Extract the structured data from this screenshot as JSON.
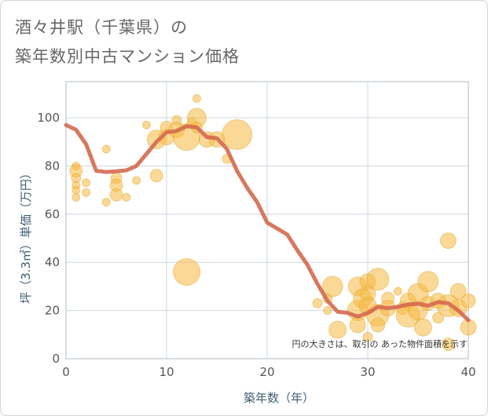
{
  "title": {
    "line1": "酒々井駅（千葉県）の",
    "line2": "築年数別中古マンション価格"
  },
  "colors": {
    "bubble_fill": "#f5b942",
    "bubble_stroke": "#e8a52e",
    "trend_line": "#d4694f",
    "grid": "#cfd8e0",
    "plot_border": "#b0bcc6"
  },
  "chart_data": {
    "type": "scatter",
    "xlabel": "築年数（年）",
    "ylabel": "坪（3.3㎡）単価（万円）",
    "xlim": [
      0,
      40
    ],
    "ylim": [
      0,
      115
    ],
    "x_ticks": [
      0,
      10,
      20,
      30,
      40
    ],
    "y_ticks": [
      0,
      20,
      40,
      60,
      80,
      100
    ],
    "note": "円の大きさは、取引の あった物件面積を示す",
    "points": [
      {
        "x": 1,
        "y": 80,
        "s": 5
      },
      {
        "x": 1,
        "y": 78,
        "s": 8
      },
      {
        "x": 1,
        "y": 75,
        "s": 6
      },
      {
        "x": 1,
        "y": 72,
        "s": 5
      },
      {
        "x": 1,
        "y": 70,
        "s": 5
      },
      {
        "x": 1,
        "y": 67,
        "s": 5
      },
      {
        "x": 2,
        "y": 73,
        "s": 5
      },
      {
        "x": 2,
        "y": 69,
        "s": 5
      },
      {
        "x": 4,
        "y": 87,
        "s": 5
      },
      {
        "x": 4,
        "y": 65,
        "s": 5
      },
      {
        "x": 5,
        "y": 75,
        "s": 7
      },
      {
        "x": 5,
        "y": 72,
        "s": 8
      },
      {
        "x": 5,
        "y": 68,
        "s": 8
      },
      {
        "x": 6,
        "y": 67,
        "s": 5
      },
      {
        "x": 7,
        "y": 74,
        "s": 5
      },
      {
        "x": 8,
        "y": 97,
        "s": 5
      },
      {
        "x": 9,
        "y": 76,
        "s": 8
      },
      {
        "x": 9,
        "y": 91,
        "s": 12
      },
      {
        "x": 10,
        "y": 92,
        "s": 10
      },
      {
        "x": 10,
        "y": 96,
        "s": 8
      },
      {
        "x": 11,
        "y": 95,
        "s": 10
      },
      {
        "x": 11,
        "y": 99,
        "s": 6
      },
      {
        "x": 12,
        "y": 92,
        "s": 17
      },
      {
        "x": 12,
        "y": 36,
        "s": 17
      },
      {
        "x": 12.5,
        "y": 98,
        "s": 6
      },
      {
        "x": 13,
        "y": 100,
        "s": 12
      },
      {
        "x": 13,
        "y": 108,
        "s": 5
      },
      {
        "x": 13,
        "y": 96,
        "s": 7
      },
      {
        "x": 14,
        "y": 91,
        "s": 10
      },
      {
        "x": 15,
        "y": 91,
        "s": 10
      },
      {
        "x": 16,
        "y": 83,
        "s": 6
      },
      {
        "x": 17,
        "y": 93,
        "s": 19
      },
      {
        "x": 25,
        "y": 23,
        "s": 6
      },
      {
        "x": 26,
        "y": 20,
        "s": 5
      },
      {
        "x": 26,
        "y": 25,
        "s": 6
      },
      {
        "x": 26.5,
        "y": 30,
        "s": 13
      },
      {
        "x": 27,
        "y": 12,
        "s": 11
      },
      {
        "x": 29,
        "y": 30,
        "s": 12
      },
      {
        "x": 29,
        "y": 20,
        "s": 13
      },
      {
        "x": 29,
        "y": 14,
        "s": 10
      },
      {
        "x": 29.5,
        "y": 25,
        "s": 12
      },
      {
        "x": 30,
        "y": 32,
        "s": 10
      },
      {
        "x": 30,
        "y": 27,
        "s": 10
      },
      {
        "x": 30,
        "y": 22,
        "s": 11
      },
      {
        "x": 30,
        "y": 9,
        "s": 6
      },
      {
        "x": 31,
        "y": 33,
        "s": 14
      },
      {
        "x": 31,
        "y": 18,
        "s": 14
      },
      {
        "x": 31,
        "y": 14,
        "s": 9
      },
      {
        "x": 32,
        "y": 25,
        "s": 8
      },
      {
        "x": 32,
        "y": 21,
        "s": 10
      },
      {
        "x": 33,
        "y": 28,
        "s": 5
      },
      {
        "x": 33.5,
        "y": 21,
        "s": 8
      },
      {
        "x": 34,
        "y": 18,
        "s": 15
      },
      {
        "x": 34,
        "y": 24,
        "s": 10
      },
      {
        "x": 35,
        "y": 27,
        "s": 13
      },
      {
        "x": 35,
        "y": 20,
        "s": 12
      },
      {
        "x": 35.5,
        "y": 13,
        "s": 11
      },
      {
        "x": 36,
        "y": 32,
        "s": 13
      },
      {
        "x": 36,
        "y": 23,
        "s": 9
      },
      {
        "x": 37,
        "y": 24,
        "s": 10
      },
      {
        "x": 37,
        "y": 17,
        "s": 7
      },
      {
        "x": 38,
        "y": 49,
        "s": 10
      },
      {
        "x": 38,
        "y": 22,
        "s": 14
      },
      {
        "x": 38,
        "y": 6,
        "s": 8
      },
      {
        "x": 39,
        "y": 28,
        "s": 10
      },
      {
        "x": 39,
        "y": 21,
        "s": 11
      },
      {
        "x": 40,
        "y": 24,
        "s": 9
      },
      {
        "x": 40,
        "y": 13,
        "s": 10
      }
    ],
    "trend": [
      {
        "x": 0,
        "y": 97
      },
      {
        "x": 1,
        "y": 95
      },
      {
        "x": 2,
        "y": 89
      },
      {
        "x": 3,
        "y": 78
      },
      {
        "x": 4,
        "y": 77.5
      },
      {
        "x": 5,
        "y": 77.8
      },
      {
        "x": 6,
        "y": 78.2
      },
      {
        "x": 7,
        "y": 80
      },
      {
        "x": 8,
        "y": 85
      },
      {
        "x": 9,
        "y": 90
      },
      {
        "x": 10,
        "y": 94
      },
      {
        "x": 11,
        "y": 94.5
      },
      {
        "x": 12,
        "y": 96.5
      },
      {
        "x": 13,
        "y": 96
      },
      {
        "x": 14,
        "y": 92
      },
      {
        "x": 15,
        "y": 91.5
      },
      {
        "x": 16,
        "y": 87
      },
      {
        "x": 17,
        "y": 78
      },
      {
        "x": 18,
        "y": 71
      },
      {
        "x": 19,
        "y": 65
      },
      {
        "x": 20,
        "y": 56.5
      },
      {
        "x": 21,
        "y": 54
      },
      {
        "x": 22,
        "y": 51.5
      },
      {
        "x": 23,
        "y": 45
      },
      {
        "x": 24,
        "y": 39
      },
      {
        "x": 25,
        "y": 31
      },
      {
        "x": 26,
        "y": 24
      },
      {
        "x": 27,
        "y": 19.5
      },
      {
        "x": 28,
        "y": 19
      },
      {
        "x": 29,
        "y": 17.5
      },
      {
        "x": 30,
        "y": 19
      },
      {
        "x": 31,
        "y": 21.5
      },
      {
        "x": 32,
        "y": 21
      },
      {
        "x": 33,
        "y": 21.5
      },
      {
        "x": 34,
        "y": 22.5
      },
      {
        "x": 35,
        "y": 22.8
      },
      {
        "x": 36,
        "y": 22
      },
      {
        "x": 37,
        "y": 23.5
      },
      {
        "x": 38,
        "y": 23
      },
      {
        "x": 39,
        "y": 20
      },
      {
        "x": 40,
        "y": 16
      }
    ]
  }
}
